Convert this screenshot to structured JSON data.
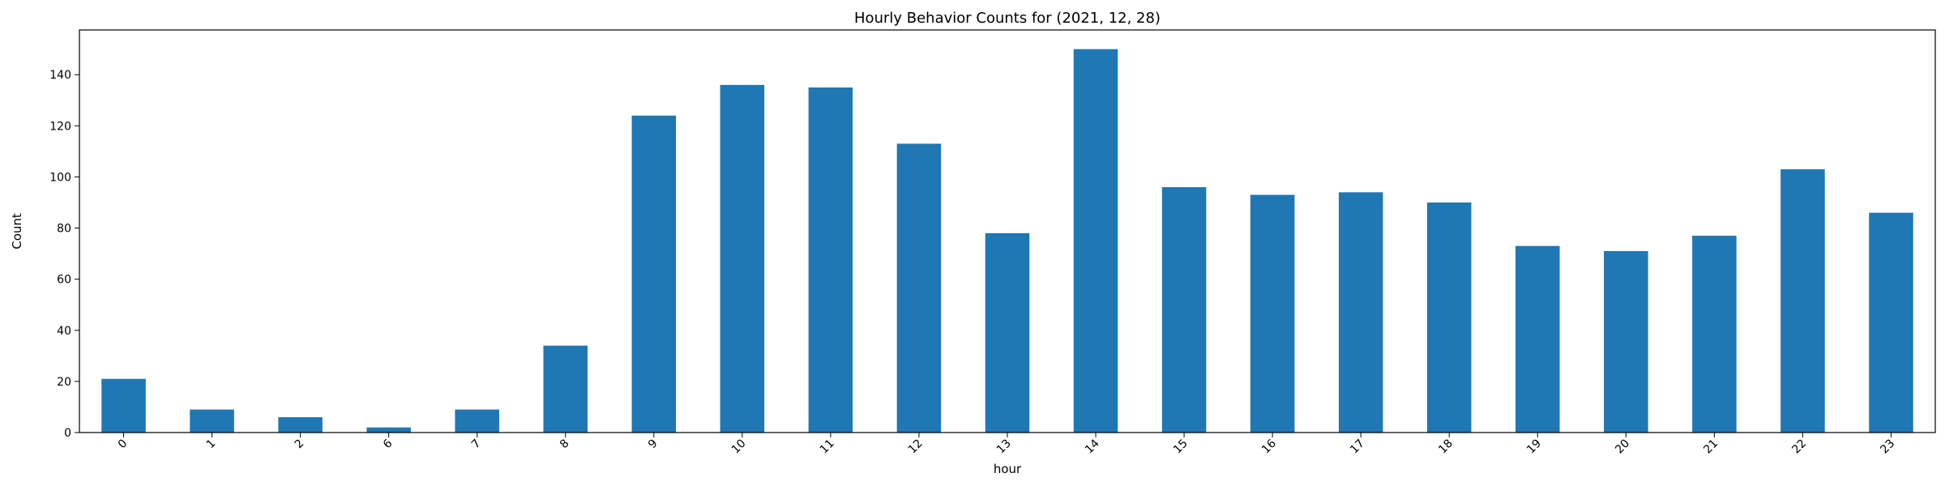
{
  "chart_data": {
    "type": "bar",
    "title": "Hourly Behavior Counts for (2021, 12, 28)",
    "xlabel": "hour",
    "ylabel": "Count",
    "categories": [
      "0",
      "1",
      "2",
      "6",
      "7",
      "8",
      "9",
      "10",
      "11",
      "12",
      "13",
      "14",
      "15",
      "16",
      "17",
      "18",
      "19",
      "20",
      "21",
      "22",
      "23"
    ],
    "values": [
      21,
      9,
      6,
      2,
      9,
      34,
      124,
      136,
      135,
      113,
      78,
      150,
      96,
      93,
      94,
      90,
      73,
      71,
      77,
      103,
      86
    ],
    "ylim": [
      0,
      157.5
    ],
    "yticks": [
      0,
      20,
      40,
      60,
      80,
      100,
      120,
      140
    ],
    "bar_color": "#1f77b4",
    "grid": false,
    "legend": "none",
    "x_tick_rotation": "45"
  }
}
